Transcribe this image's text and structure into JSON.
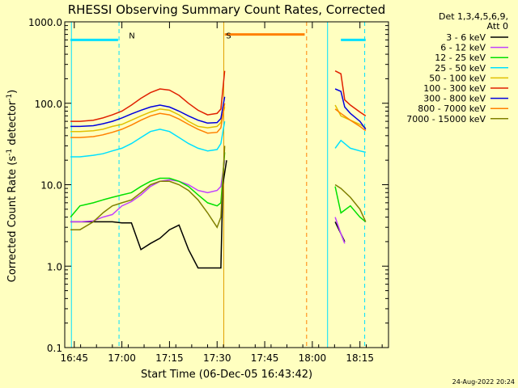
{
  "chart_data": {
    "type": "line",
    "title": "RHESSI Observing Summary Count Rates, Corrected",
    "xlabel": "Start Time (06-Dec-05 16:43:42)",
    "ylabel_main": "Corrected Count Rate (s",
    "ylabel_sup1": "-1",
    "ylabel_mid": " detector",
    "ylabel_sup2": "-1",
    "ylabel_end": ")",
    "yscale": "log",
    "ylim": [
      0.1,
      1000
    ],
    "xlim_minutes": [
      16.7,
      18.4
    ],
    "xticks": [
      {
        "label": "16:45",
        "t": 16.75
      },
      {
        "label": "17:00",
        "t": 17.0
      },
      {
        "label": "17:15",
        "t": 17.25
      },
      {
        "label": "17:30",
        "t": 17.5
      },
      {
        "label": "17:45",
        "t": 17.75
      },
      {
        "label": "18:00",
        "t": 18.0
      },
      {
        "label": "18:15",
        "t": 18.25
      }
    ],
    "yticks": [
      {
        "label": "0.1",
        "v": 0.1
      },
      {
        "label": "1.0",
        "v": 1
      },
      {
        "label": "10.0",
        "v": 10
      },
      {
        "label": "100.0",
        "v": 100
      },
      {
        "label": "1000.0",
        "v": 1000
      }
    ],
    "legend_header": [
      "Det 1,3,4,5,6,9,",
      "Att 0"
    ],
    "legend_position": "top-right",
    "series": [
      {
        "name": "3 - 6 keV",
        "color": "#000000",
        "values": [
          [
            16.73,
            3.5
          ],
          [
            16.78,
            3.5
          ],
          [
            16.85,
            3.5
          ],
          [
            16.9,
            3.5
          ],
          [
            16.95,
            3.5
          ],
          [
            17.0,
            3.4
          ],
          [
            17.05,
            3.4
          ],
          [
            17.1,
            1.6
          ],
          [
            17.15,
            1.9
          ],
          [
            17.2,
            2.2
          ],
          [
            17.25,
            2.8
          ],
          [
            17.3,
            3.2
          ],
          [
            17.35,
            1.6
          ],
          [
            17.4,
            0.95
          ],
          [
            17.45,
            0.95
          ],
          [
            17.5,
            0.95
          ],
          [
            17.52,
            0.95
          ],
          [
            17.53,
            10
          ],
          [
            17.55,
            20
          ],
          [
            18.12,
            3.5
          ],
          [
            18.15,
            2.5
          ],
          [
            18.17,
            2.0
          ]
        ]
      },
      {
        "name": "6 - 12 keV",
        "color": "#c040ff",
        "values": [
          [
            16.73,
            3.5
          ],
          [
            16.78,
            3.5
          ],
          [
            16.85,
            3.6
          ],
          [
            16.9,
            4.0
          ],
          [
            16.95,
            4.3
          ],
          [
            17.0,
            5.5
          ],
          [
            17.05,
            6.2
          ],
          [
            17.1,
            7.5
          ],
          [
            17.15,
            9.5
          ],
          [
            17.2,
            11
          ],
          [
            17.25,
            11.5
          ],
          [
            17.3,
            11
          ],
          [
            17.35,
            10
          ],
          [
            17.4,
            8.5
          ],
          [
            17.45,
            8.0
          ],
          [
            17.5,
            8.5
          ],
          [
            17.52,
            9.5
          ],
          [
            17.54,
            20
          ],
          [
            18.12,
            4.0
          ],
          [
            18.15,
            2.5
          ],
          [
            18.17,
            1.9
          ]
        ]
      },
      {
        "name": "12 - 25 keV",
        "color": "#00e000",
        "values": [
          [
            16.73,
            4.0
          ],
          [
            16.78,
            5.5
          ],
          [
            16.85,
            6.0
          ],
          [
            16.9,
            6.5
          ],
          [
            16.95,
            7.0
          ],
          [
            17.0,
            7.5
          ],
          [
            17.05,
            8.0
          ],
          [
            17.1,
            9.5
          ],
          [
            17.15,
            11
          ],
          [
            17.2,
            12
          ],
          [
            17.25,
            12
          ],
          [
            17.3,
            11
          ],
          [
            17.35,
            9.5
          ],
          [
            17.4,
            7.5
          ],
          [
            17.45,
            6.0
          ],
          [
            17.5,
            5.5
          ],
          [
            17.52,
            6.0
          ],
          [
            17.54,
            25
          ],
          [
            18.12,
            9.5
          ],
          [
            18.15,
            4.5
          ],
          [
            18.2,
            5.5
          ],
          [
            18.25,
            4.0
          ],
          [
            18.28,
            3.5
          ]
        ]
      },
      {
        "name": "25 - 50 keV",
        "color": "#00e0ff",
        "values": [
          [
            16.73,
            22
          ],
          [
            16.78,
            22
          ],
          [
            16.85,
            23
          ],
          [
            16.9,
            24
          ],
          [
            16.95,
            26
          ],
          [
            17.0,
            28
          ],
          [
            17.05,
            32
          ],
          [
            17.1,
            38
          ],
          [
            17.15,
            45
          ],
          [
            17.2,
            48
          ],
          [
            17.25,
            45
          ],
          [
            17.3,
            38
          ],
          [
            17.35,
            32
          ],
          [
            17.4,
            28
          ],
          [
            17.45,
            26
          ],
          [
            17.5,
            27
          ],
          [
            17.52,
            32
          ],
          [
            17.54,
            60
          ],
          [
            18.12,
            28
          ],
          [
            18.15,
            35
          ],
          [
            18.2,
            28
          ],
          [
            18.25,
            26
          ],
          [
            18.28,
            25
          ]
        ]
      },
      {
        "name": "50 - 100 keV",
        "color": "#e0c000",
        "values": [
          [
            16.73,
            45
          ],
          [
            16.78,
            45
          ],
          [
            16.85,
            46
          ],
          [
            16.9,
            48
          ],
          [
            16.95,
            52
          ],
          [
            17.0,
            55
          ],
          [
            17.05,
            62
          ],
          [
            17.1,
            70
          ],
          [
            17.15,
            78
          ],
          [
            17.2,
            85
          ],
          [
            17.25,
            82
          ],
          [
            17.3,
            72
          ],
          [
            17.35,
            60
          ],
          [
            17.4,
            52
          ],
          [
            17.45,
            50
          ],
          [
            17.5,
            52
          ],
          [
            17.52,
            58
          ],
          [
            17.54,
            90
          ],
          [
            18.12,
            95
          ],
          [
            18.15,
            70
          ],
          [
            18.2,
            62
          ],
          [
            18.25,
            55
          ],
          [
            18.28,
            50
          ]
        ]
      },
      {
        "name": "100 - 300 keV",
        "color": "#e02000",
        "values": [
          [
            16.73,
            60
          ],
          [
            16.78,
            60
          ],
          [
            16.85,
            62
          ],
          [
            16.9,
            66
          ],
          [
            16.95,
            72
          ],
          [
            17.0,
            80
          ],
          [
            17.05,
            95
          ],
          [
            17.1,
            115
          ],
          [
            17.15,
            135
          ],
          [
            17.2,
            150
          ],
          [
            17.25,
            145
          ],
          [
            17.3,
            125
          ],
          [
            17.35,
            100
          ],
          [
            17.4,
            82
          ],
          [
            17.45,
            72
          ],
          [
            17.5,
            75
          ],
          [
            17.52,
            85
          ],
          [
            17.54,
            250
          ],
          [
            18.12,
            250
          ],
          [
            18.15,
            230
          ],
          [
            18.17,
            110
          ],
          [
            18.2,
            95
          ],
          [
            18.25,
            78
          ],
          [
            18.28,
            70
          ]
        ]
      },
      {
        "name": "300 - 800 keV",
        "color": "#0000e0",
        "values": [
          [
            16.73,
            52
          ],
          [
            16.78,
            52
          ],
          [
            16.85,
            53
          ],
          [
            16.9,
            56
          ],
          [
            16.95,
            60
          ],
          [
            17.0,
            66
          ],
          [
            17.05,
            74
          ],
          [
            17.1,
            82
          ],
          [
            17.15,
            90
          ],
          [
            17.2,
            95
          ],
          [
            17.25,
            90
          ],
          [
            17.3,
            80
          ],
          [
            17.35,
            70
          ],
          [
            17.4,
            62
          ],
          [
            17.45,
            57
          ],
          [
            17.5,
            58
          ],
          [
            17.52,
            65
          ],
          [
            17.54,
            120
          ],
          [
            18.12,
            150
          ],
          [
            18.15,
            140
          ],
          [
            18.17,
            90
          ],
          [
            18.2,
            75
          ],
          [
            18.25,
            60
          ],
          [
            18.28,
            48
          ]
        ]
      },
      {
        "name": "800 - 7000 keV",
        "color": "#ff8000",
        "values": [
          [
            16.73,
            38
          ],
          [
            16.78,
            38
          ],
          [
            16.85,
            39
          ],
          [
            16.9,
            41
          ],
          [
            16.95,
            44
          ],
          [
            17.0,
            48
          ],
          [
            17.05,
            54
          ],
          [
            17.1,
            62
          ],
          [
            17.15,
            70
          ],
          [
            17.2,
            75
          ],
          [
            17.25,
            72
          ],
          [
            17.3,
            64
          ],
          [
            17.35,
            55
          ],
          [
            17.4,
            48
          ],
          [
            17.45,
            43
          ],
          [
            17.5,
            44
          ],
          [
            17.52,
            50
          ],
          [
            17.54,
            100
          ],
          [
            18.12,
            85
          ],
          [
            18.15,
            75
          ],
          [
            18.2,
            62
          ],
          [
            18.25,
            52
          ],
          [
            18.28,
            46
          ]
        ]
      },
      {
        "name": "7000 - 15000 keV",
        "color": "#808000",
        "values": [
          [
            16.73,
            2.8
          ],
          [
            16.78,
            2.8
          ],
          [
            16.85,
            3.5
          ],
          [
            16.9,
            4.5
          ],
          [
            16.95,
            5.5
          ],
          [
            17.0,
            6.0
          ],
          [
            17.05,
            6.5
          ],
          [
            17.1,
            8.0
          ],
          [
            17.15,
            10
          ],
          [
            17.2,
            11
          ],
          [
            17.25,
            11
          ],
          [
            17.3,
            10
          ],
          [
            17.35,
            8.5
          ],
          [
            17.4,
            6.5
          ],
          [
            17.45,
            4.5
          ],
          [
            17.5,
            3.0
          ],
          [
            17.52,
            4.0
          ],
          [
            17.54,
            30
          ],
          [
            18.12,
            10
          ],
          [
            18.15,
            9
          ],
          [
            18.2,
            7.0
          ],
          [
            18.25,
            5.0
          ],
          [
            18.28,
            3.5
          ]
        ]
      }
    ],
    "annotations": [
      {
        "text": "N",
        "t": 17.02,
        "color": "#00e0ff"
      },
      {
        "text": "S",
        "t": 17.53,
        "color": "#e0a000"
      }
    ],
    "flags": [
      {
        "kind": "night",
        "color": "#00e0ff",
        "segments": [
          [
            16.73,
            16.98
          ],
          [
            18.15,
            18.28
          ]
        ],
        "level": 600
      },
      {
        "kind": "saa",
        "color": "#ff8000",
        "segments": [
          [
            17.54,
            17.96
          ]
        ],
        "level": 700
      }
    ],
    "vlines": [
      {
        "t": 16.735,
        "color": "#00e0ff",
        "style": "solid"
      },
      {
        "t": 16.985,
        "color": "#00e0ff",
        "style": "dashed"
      },
      {
        "t": 17.535,
        "color": "#e0a000",
        "style": "solid"
      },
      {
        "t": 17.97,
        "color": "#ff8000",
        "style": "dashed"
      },
      {
        "t": 18.08,
        "color": "#00e0ff",
        "style": "solid"
      },
      {
        "t": 18.275,
        "color": "#00e0ff",
        "style": "dashed"
      }
    ]
  },
  "footer_date": "24-Aug-2022 20:24"
}
